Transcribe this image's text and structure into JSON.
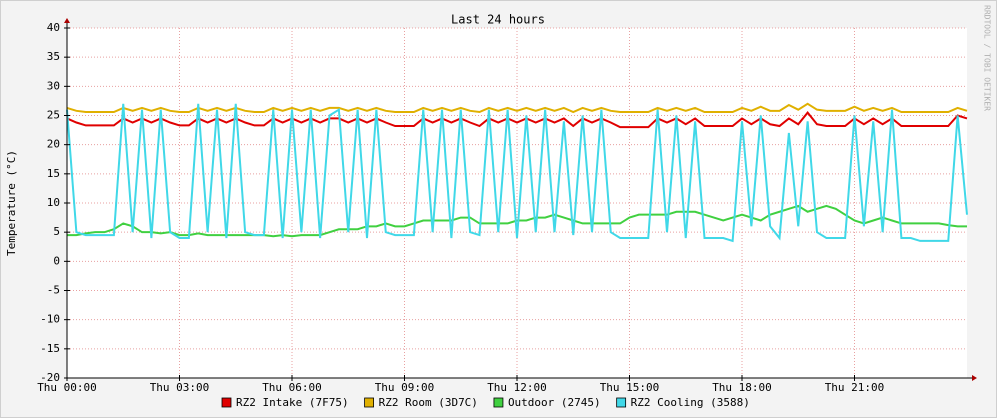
{
  "chart_data": {
    "type": "line",
    "title": "Last 24 hours",
    "y_label": "Temperature (°C)",
    "watermark": "RRDTOOL / TOBI OETIKER",
    "xlim": [
      0,
      24
    ],
    "ylim": [
      -20,
      40
    ],
    "yticks": [
      -20,
      -15,
      -10,
      -5,
      0,
      5,
      10,
      15,
      20,
      25,
      30,
      35,
      40
    ],
    "xticks": [
      {
        "value": 0,
        "label": "Thu 00:00"
      },
      {
        "value": 3,
        "label": "Thu 03:00"
      },
      {
        "value": 6,
        "label": "Thu 06:00"
      },
      {
        "value": 9,
        "label": "Thu 09:00"
      },
      {
        "value": 12,
        "label": "Thu 12:00"
      },
      {
        "value": 15,
        "label": "Thu 15:00"
      },
      {
        "value": 18,
        "label": "Thu 18:00"
      },
      {
        "value": 21,
        "label": "Thu 21:00"
      }
    ],
    "grid": true,
    "x": [
      0,
      0.25,
      0.5,
      0.75,
      1,
      1.25,
      1.5,
      1.75,
      2,
      2.25,
      2.5,
      2.75,
      3,
      3.25,
      3.5,
      3.75,
      4,
      4.25,
      4.5,
      4.75,
      5,
      5.25,
      5.5,
      5.75,
      6,
      6.25,
      6.5,
      6.75,
      7,
      7.25,
      7.5,
      7.75,
      8,
      8.25,
      8.5,
      8.75,
      9,
      9.25,
      9.5,
      9.75,
      10,
      10.25,
      10.5,
      10.75,
      11,
      11.25,
      11.5,
      11.75,
      12,
      12.25,
      12.5,
      12.75,
      13,
      13.25,
      13.5,
      13.75,
      14,
      14.25,
      14.5,
      14.75,
      15,
      15.25,
      15.5,
      15.75,
      16,
      16.25,
      16.5,
      16.75,
      17,
      17.25,
      17.5,
      17.75,
      18,
      18.25,
      18.5,
      18.75,
      19,
      19.25,
      19.5,
      19.75,
      20,
      20.25,
      20.5,
      20.75,
      21,
      21.25,
      21.5,
      21.75,
      22,
      22.25,
      22.5,
      22.75,
      23,
      23.25,
      23.5,
      23.75,
      24
    ],
    "series": [
      {
        "name": "RZ2 Intake (7F75)",
        "color": "#e00000",
        "values": [
          24.5,
          23.8,
          23.3,
          23.3,
          23.3,
          23.3,
          24.5,
          23.8,
          24.5,
          23.8,
          24.5,
          23.8,
          23.3,
          23.3,
          24.5,
          23.8,
          24.5,
          23.8,
          24.5,
          23.8,
          23.3,
          23.3,
          24.5,
          23.8,
          24.5,
          23.8,
          24.5,
          23.8,
          24.5,
          24.5,
          23.8,
          24.5,
          23.8,
          24.5,
          23.8,
          23.2,
          23.2,
          23.2,
          24.5,
          23.8,
          24.5,
          23.8,
          24.5,
          23.8,
          23.2,
          24.5,
          23.8,
          24.5,
          23.8,
          24.5,
          23.8,
          24.5,
          23.8,
          24.5,
          23.2,
          24.5,
          23.8,
          24.5,
          23.8,
          23,
          23,
          23,
          23,
          24.5,
          23.8,
          24.5,
          23.5,
          24.5,
          23.2,
          23.2,
          23.2,
          23.2,
          24.5,
          23.5,
          24.5,
          23.5,
          23.2,
          24.5,
          23.5,
          25.5,
          23.5,
          23.2,
          23.2,
          23.2,
          24.5,
          23.5,
          24.5,
          23.5,
          24.5,
          23.2,
          23.2,
          23.2,
          23.2,
          23.2,
          23.2,
          25,
          24.5
        ]
      },
      {
        "name": "RZ2 Room (3D7C)",
        "color": "#e0b000",
        "values": [
          26.3,
          25.8,
          25.6,
          25.6,
          25.6,
          25.6,
          26.3,
          25.8,
          26.3,
          25.8,
          26.3,
          25.8,
          25.6,
          25.6,
          26.3,
          25.8,
          26.3,
          25.8,
          26.3,
          25.8,
          25.6,
          25.6,
          26.3,
          25.8,
          26.3,
          25.8,
          26.3,
          25.8,
          26.3,
          26.3,
          25.8,
          26.3,
          25.8,
          26.3,
          25.8,
          25.6,
          25.6,
          25.6,
          26.3,
          25.8,
          26.3,
          25.8,
          26.3,
          25.8,
          25.6,
          26.3,
          25.8,
          26.3,
          25.8,
          26.3,
          25.8,
          26.3,
          25.8,
          26.3,
          25.6,
          26.3,
          25.8,
          26.3,
          25.8,
          25.6,
          25.6,
          25.6,
          25.6,
          26.3,
          25.8,
          26.3,
          25.8,
          26.3,
          25.6,
          25.6,
          25.6,
          25.6,
          26.3,
          25.8,
          26.5,
          25.8,
          25.8,
          26.8,
          26,
          27,
          26,
          25.8,
          25.8,
          25.8,
          26.5,
          25.8,
          26.3,
          25.8,
          26.3,
          25.6,
          25.6,
          25.6,
          25.6,
          25.6,
          25.6,
          26.3,
          25.8
        ]
      },
      {
        "name": "Outdoor (2745)",
        "color": "#40d040",
        "values": [
          4.5,
          4.5,
          4.8,
          5,
          5,
          5.5,
          6.5,
          6,
          5,
          5,
          4.8,
          5,
          4.5,
          4.5,
          4.8,
          4.5,
          4.5,
          4.5,
          4.5,
          4.5,
          4.5,
          4.5,
          4.3,
          4.5,
          4.3,
          4.5,
          4.5,
          4.5,
          5,
          5.5,
          5.5,
          5.5,
          6,
          6,
          6.5,
          6,
          6,
          6.5,
          7,
          7,
          7,
          7,
          7.5,
          7.5,
          6.5,
          6.5,
          6.5,
          6.5,
          7,
          7,
          7.5,
          7.5,
          8,
          7.5,
          7,
          6.5,
          6.5,
          6.5,
          6.5,
          6.5,
          7.5,
          8,
          8,
          8,
          8,
          8.5,
          8.5,
          8.5,
          8,
          7.5,
          7,
          7.5,
          8,
          7.5,
          7,
          8,
          8.5,
          9,
          9.5,
          8.5,
          9,
          9.5,
          9,
          8,
          7,
          6.5,
          7,
          7.5,
          7,
          6.5,
          6.5,
          6.5,
          6.5,
          6.5,
          6.2,
          6,
          6
        ]
      },
      {
        "name": "RZ2 Cooling (3588)",
        "color": "#40d8e8",
        "values": [
          26,
          5,
          4.5,
          4.5,
          4.5,
          4.5,
          27,
          5,
          26,
          4,
          26,
          5,
          4,
          4,
          27,
          5,
          26,
          4,
          27,
          5,
          4.5,
          4.5,
          26,
          4,
          26,
          5,
          26,
          4,
          25,
          26,
          5,
          26,
          4,
          26,
          5,
          4.5,
          4.5,
          4.5,
          26,
          5,
          26,
          4,
          26,
          5,
          4.5,
          26,
          5,
          26,
          4,
          25,
          5,
          26,
          5,
          24,
          4.5,
          25,
          5,
          26,
          5,
          4,
          4,
          4,
          4,
          26,
          5,
          25,
          4,
          24,
          4,
          4,
          4,
          3.5,
          24,
          6,
          25,
          6,
          4,
          22,
          6,
          24,
          5,
          4,
          4,
          4,
          25,
          6,
          24,
          5,
          26,
          4,
          4,
          3.5,
          3.5,
          3.5,
          3.5,
          25,
          8
        ]
      }
    ]
  }
}
